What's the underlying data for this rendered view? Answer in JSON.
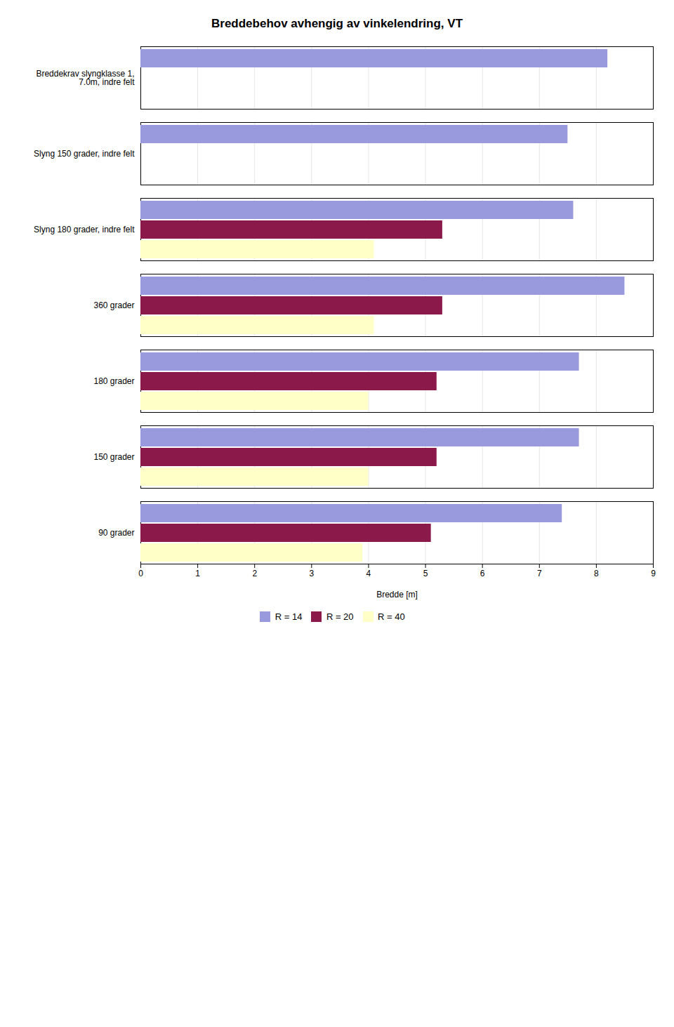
{
  "chart_data": {
    "type": "bar",
    "orientation": "horizontal",
    "title": "Breddebehov avhengig av vinkelendring, VT",
    "xlabel": "Bredde [m]",
    "categories": [
      "Breddekrav slyngklasse 1,\n7.0m, indre felt",
      "Slyng 150 grader, indre felt",
      "Slyng 180 grader, indre felt",
      "360 grader",
      "180 grader",
      "150 grader",
      "90 grader"
    ],
    "series": [
      {
        "name": "R = 14",
        "color": "#9999dd",
        "values": [
          8.2,
          7.5,
          7.6,
          8.5,
          7.7,
          7.7,
          7.4
        ]
      },
      {
        "name": "R = 20",
        "color": "#8b1a4a",
        "values": [
          null,
          null,
          5.3,
          5.3,
          5.2,
          5.2,
          5.1
        ]
      },
      {
        "name": "R = 40",
        "color": "#ffffc8",
        "values": [
          null,
          null,
          4.1,
          4.1,
          4.0,
          4.0,
          3.9
        ]
      }
    ],
    "xlim": [
      0,
      9
    ],
    "xticks": [
      0,
      1,
      2,
      3,
      4,
      5,
      6,
      7,
      8,
      9
    ],
    "grid": true,
    "legend": "bottom"
  }
}
